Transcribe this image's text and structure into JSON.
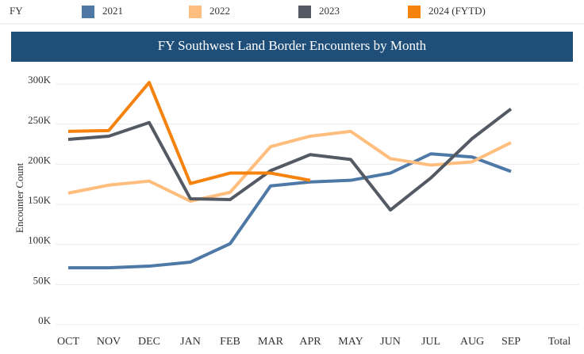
{
  "chart_data": {
    "type": "line",
    "legend_title": "FY",
    "title": "FY Southwest Land Border Encounters by Month",
    "y_label": "Encounter Count",
    "categories": [
      "OCT",
      "NOV",
      "DEC",
      "JAN",
      "FEB",
      "MAR",
      "APR",
      "MAY",
      "JUN",
      "JUL",
      "AUG",
      "SEP",
      "Total"
    ],
    "series": [
      {
        "name": "2021",
        "color": "#4e79a7",
        "values": [
          71000,
          71000,
          73000,
          78000,
          101000,
          173000,
          178000,
          180000,
          189000,
          213000,
          209000,
          191000,
          null
        ]
      },
      {
        "name": "2022",
        "color": "#ffbe7d",
        "values": [
          164000,
          174000,
          179000,
          154000,
          165000,
          222000,
          235000,
          241000,
          207000,
          199000,
          203000,
          227000,
          null
        ]
      },
      {
        "name": "2023",
        "color": "#545a64",
        "values": [
          231000,
          235000,
          252000,
          157000,
          156000,
          192000,
          212000,
          206000,
          143000,
          183000,
          232000,
          269000,
          null
        ]
      },
      {
        "name": "2024 (FYTD)",
        "color": "#f5820d",
        "values": [
          241000,
          242000,
          302000,
          176000,
          189000,
          189000,
          180000,
          null,
          null,
          null,
          null,
          null,
          null
        ]
      }
    ],
    "ylim": [
      0,
      310000
    ],
    "yticks": [
      {
        "value": 0,
        "label": "0K"
      },
      {
        "value": 50000,
        "label": "50K"
      },
      {
        "value": 100000,
        "label": "100K"
      },
      {
        "value": 150000,
        "label": "150K"
      },
      {
        "value": 200000,
        "label": "200K"
      },
      {
        "value": 250000,
        "label": "250K"
      },
      {
        "value": 300000,
        "label": "300K"
      }
    ],
    "grid": true
  }
}
